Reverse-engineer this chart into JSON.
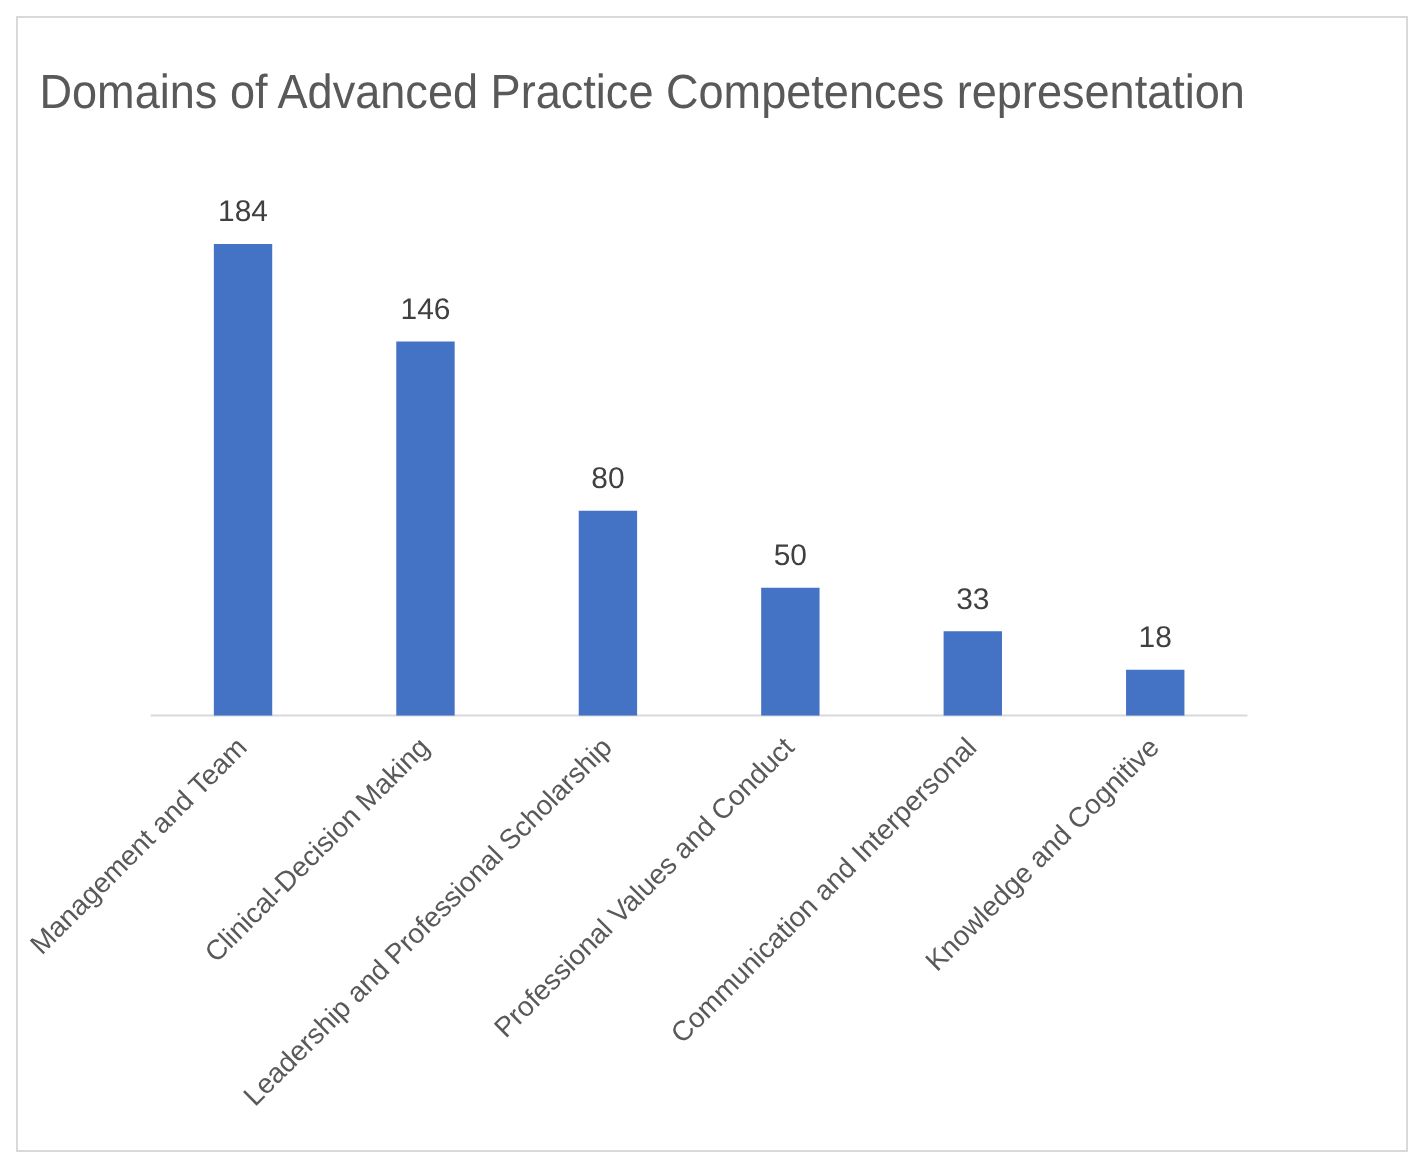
{
  "chart_data": {
    "type": "bar",
    "title": "Domains of Advanced Practice Competences representation",
    "categories": [
      "Management and Team",
      "Clinical-Decision Making",
      "Leadership and Professional Scholarship",
      "Professional Values and Conduct",
      "Communication and Interpersonal",
      "Knowledge and Cognitive"
    ],
    "values": [
      184,
      146,
      80,
      50,
      33,
      18
    ],
    "color": "#4472c4",
    "data_labels": true,
    "grid": false,
    "legend": false
  }
}
